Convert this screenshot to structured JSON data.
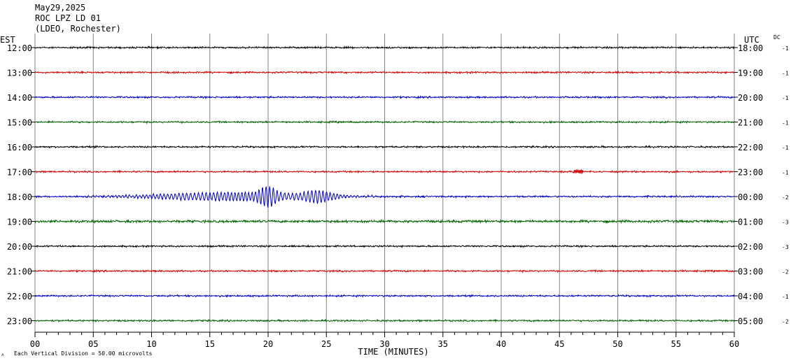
{
  "header": {
    "date": "May29,2025",
    "station": "ROC LPZ LD 01",
    "network": "(LDEO, Rochester)"
  },
  "left_zone": "EST",
  "right_zone": "UTC",
  "dc_label": "DC",
  "footer_note": "Each Vertical Division =   50.00 microvolts",
  "colors": {
    "black": "#000000",
    "red": "#d10000",
    "blue": "#0000c8",
    "green": "#006400",
    "grid": "#808080"
  },
  "chart_data": {
    "type": "line",
    "title": "",
    "xlabel": "TIME (MINUTES)",
    "ylabel": "",
    "xlim": [
      0,
      60
    ],
    "x_ticks": [
      "00",
      "05",
      "10",
      "15",
      "20",
      "25",
      "30",
      "35",
      "40",
      "45",
      "50",
      "55",
      "60"
    ],
    "grid": "vertical every 5 minutes",
    "rows": [
      {
        "est": "12:00",
        "utc": "18:00",
        "dc": "-1",
        "color": "#000000"
      },
      {
        "est": "13:00",
        "utc": "19:00",
        "dc": "-1",
        "color": "#d10000"
      },
      {
        "est": "14:00",
        "utc": "20:00",
        "dc": "-1",
        "color": "#0000c8"
      },
      {
        "est": "15:00",
        "utc": "21:00",
        "dc": "-1",
        "color": "#006400"
      },
      {
        "est": "16:00",
        "utc": "22:00",
        "dc": "-1",
        "color": "#000000"
      },
      {
        "est": "17:00",
        "utc": "23:00",
        "dc": "-1",
        "color": "#d10000"
      },
      {
        "est": "18:00",
        "utc": "00:00",
        "dc": "-2",
        "color": "#0000c8"
      },
      {
        "est": "19:00",
        "utc": "01:00",
        "dc": "-3",
        "color": "#006400"
      },
      {
        "est": "20:00",
        "utc": "02:00",
        "dc": "-3",
        "color": "#000000"
      },
      {
        "est": "21:00",
        "utc": "03:00",
        "dc": "-2",
        "color": "#d10000"
      },
      {
        "est": "22:00",
        "utc": "04:00",
        "dc": "-1",
        "color": "#0000c8"
      },
      {
        "est": "23:00",
        "utc": "05:00",
        "dc": "-2",
        "color": "#006400"
      }
    ]
  }
}
